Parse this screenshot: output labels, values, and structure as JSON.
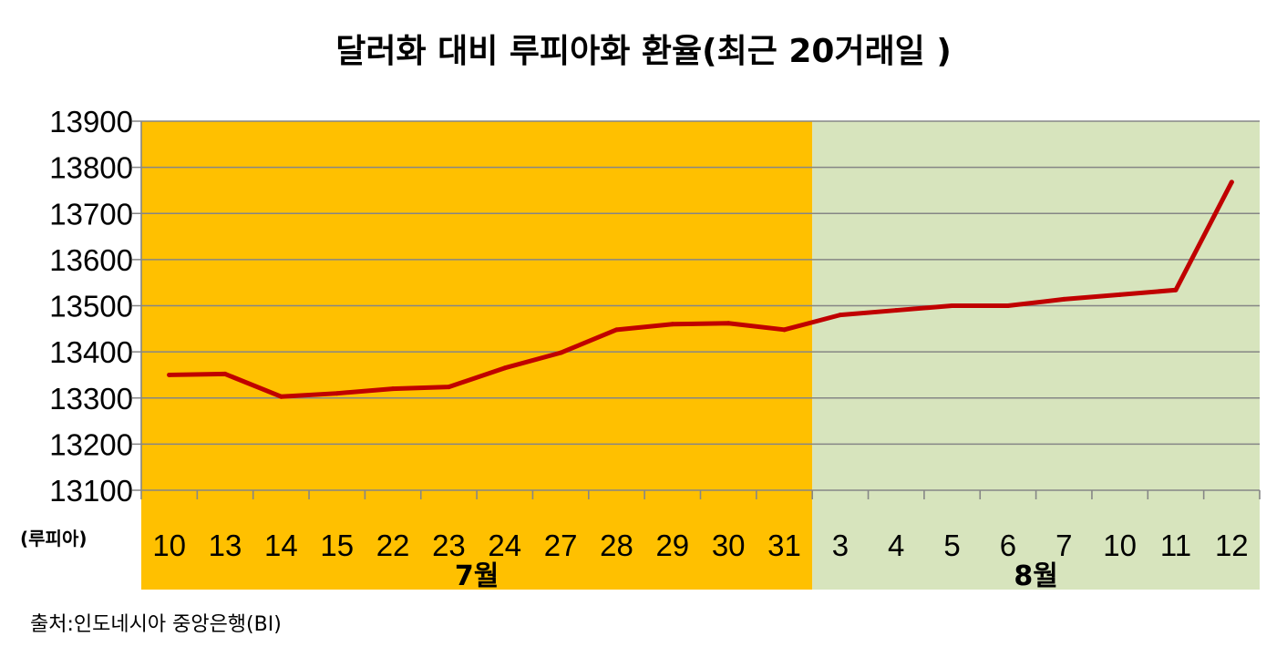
{
  "chart_data": {
    "type": "line",
    "title": "달러화 대비 루피아화 환율(최근 20거래일 )",
    "unit_label": "(루피아)",
    "source": "출처:인도네시아 중앙은행(BI)",
    "categories": [
      "10",
      "13",
      "14",
      "15",
      "22",
      "23",
      "24",
      "27",
      "28",
      "29",
      "30",
      "31",
      "3",
      "4",
      "5",
      "6",
      "7",
      "10",
      "11",
      "12"
    ],
    "series": [
      {
        "values": [
          13350,
          13352,
          13303,
          13310,
          13320,
          13324,
          13365,
          13398,
          13448,
          13460,
          13462,
          13448,
          13480,
          13490,
          13500,
          13500,
          13514,
          13524,
          13534,
          13768
        ]
      }
    ],
    "ylim": [
      13100,
      13900
    ],
    "yticks": [
      "13100",
      "13200",
      "13300",
      "13400",
      "13500",
      "13600",
      "13700",
      "13800",
      "13900"
    ],
    "grid": true,
    "month_groups": [
      {
        "label": "7월",
        "start_index": 0,
        "end_index": 11,
        "color": "#FFC000"
      },
      {
        "label": "8월",
        "start_index": 12,
        "end_index": 19,
        "color": "#D7E4BD"
      }
    ],
    "line_color": "#C00000",
    "grid_color": "#868686"
  }
}
